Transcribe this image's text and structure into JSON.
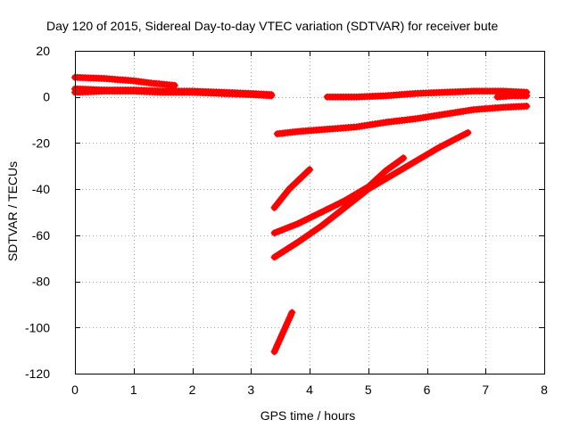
{
  "chart_data": {
    "type": "scatter",
    "title": "Day 120 of 2015, Sidereal Day-to-day VTEC variation (SDTVAR) for receiver bute",
    "xlabel": "GPS time / hours",
    "ylabel": "SDTVAR / TECUs",
    "xlim": [
      0,
      8
    ],
    "ylim": [
      -120,
      20
    ],
    "xticks": [
      0,
      1,
      2,
      3,
      4,
      5,
      6,
      7,
      8
    ],
    "yticks": [
      -120,
      -100,
      -80,
      -60,
      -40,
      -20,
      0,
      20
    ],
    "grid": true,
    "legend": "none",
    "marker": "+",
    "color": "#ff0000",
    "series": [
      {
        "x": [
          0.0,
          0.5,
          1.0,
          1.3,
          1.7
        ],
        "y": [
          8.5,
          8.0,
          7.0,
          6.0,
          5.0
        ]
      },
      {
        "x": [
          0.0,
          0.5,
          1.0,
          1.5,
          2.0,
          2.5,
          3.0,
          3.35
        ],
        "y": [
          3.5,
          3.0,
          3.0,
          2.5,
          2.5,
          2.0,
          1.5,
          1.0
        ]
      },
      {
        "x": [
          0.0,
          0.5,
          1.0,
          1.5,
          2.0,
          2.5,
          3.0,
          3.35
        ],
        "y": [
          2.0,
          2.5,
          2.5,
          2.0,
          2.0,
          1.5,
          1.0,
          0.5
        ]
      },
      {
        "x": [
          4.3,
          4.8,
          5.3,
          5.8,
          6.3,
          6.8,
          7.3,
          7.7
        ],
        "y": [
          0.0,
          0.0,
          0.5,
          1.5,
          2.0,
          2.5,
          2.5,
          2.0
        ]
      },
      {
        "x": [
          7.2,
          7.45,
          7.7
        ],
        "y": [
          0.0,
          0.5,
          0.5
        ]
      },
      {
        "x": [
          3.45,
          3.8,
          4.3,
          4.8,
          5.3,
          5.8,
          6.3,
          6.8,
          7.3,
          7.7
        ],
        "y": [
          -16.0,
          -15.0,
          -14.0,
          -13.0,
          -11.0,
          -9.5,
          -7.5,
          -5.5,
          -4.5,
          -4.0
        ]
      },
      {
        "x": [
          3.4,
          3.65,
          4.0
        ],
        "y": [
          -48.0,
          -40.0,
          -31.5
        ]
      },
      {
        "x": [
          3.4,
          3.8,
          4.2,
          4.6,
          5.0,
          5.3,
          5.6
        ],
        "y": [
          -59.0,
          -55.0,
          -50.0,
          -45.0,
          -39.0,
          -32.0,
          -26.5
        ]
      },
      {
        "x": [
          3.4,
          3.8,
          4.2,
          4.6,
          5.0,
          5.4,
          5.8,
          6.2,
          6.7
        ],
        "y": [
          -69.5,
          -63.0,
          -56.0,
          -48.0,
          -40.0,
          -34.0,
          -28.0,
          -22.0,
          -15.5
        ]
      },
      {
        "x": [
          3.4,
          3.55,
          3.7
        ],
        "y": [
          -110.5,
          -102.0,
          -93.5
        ]
      }
    ]
  }
}
